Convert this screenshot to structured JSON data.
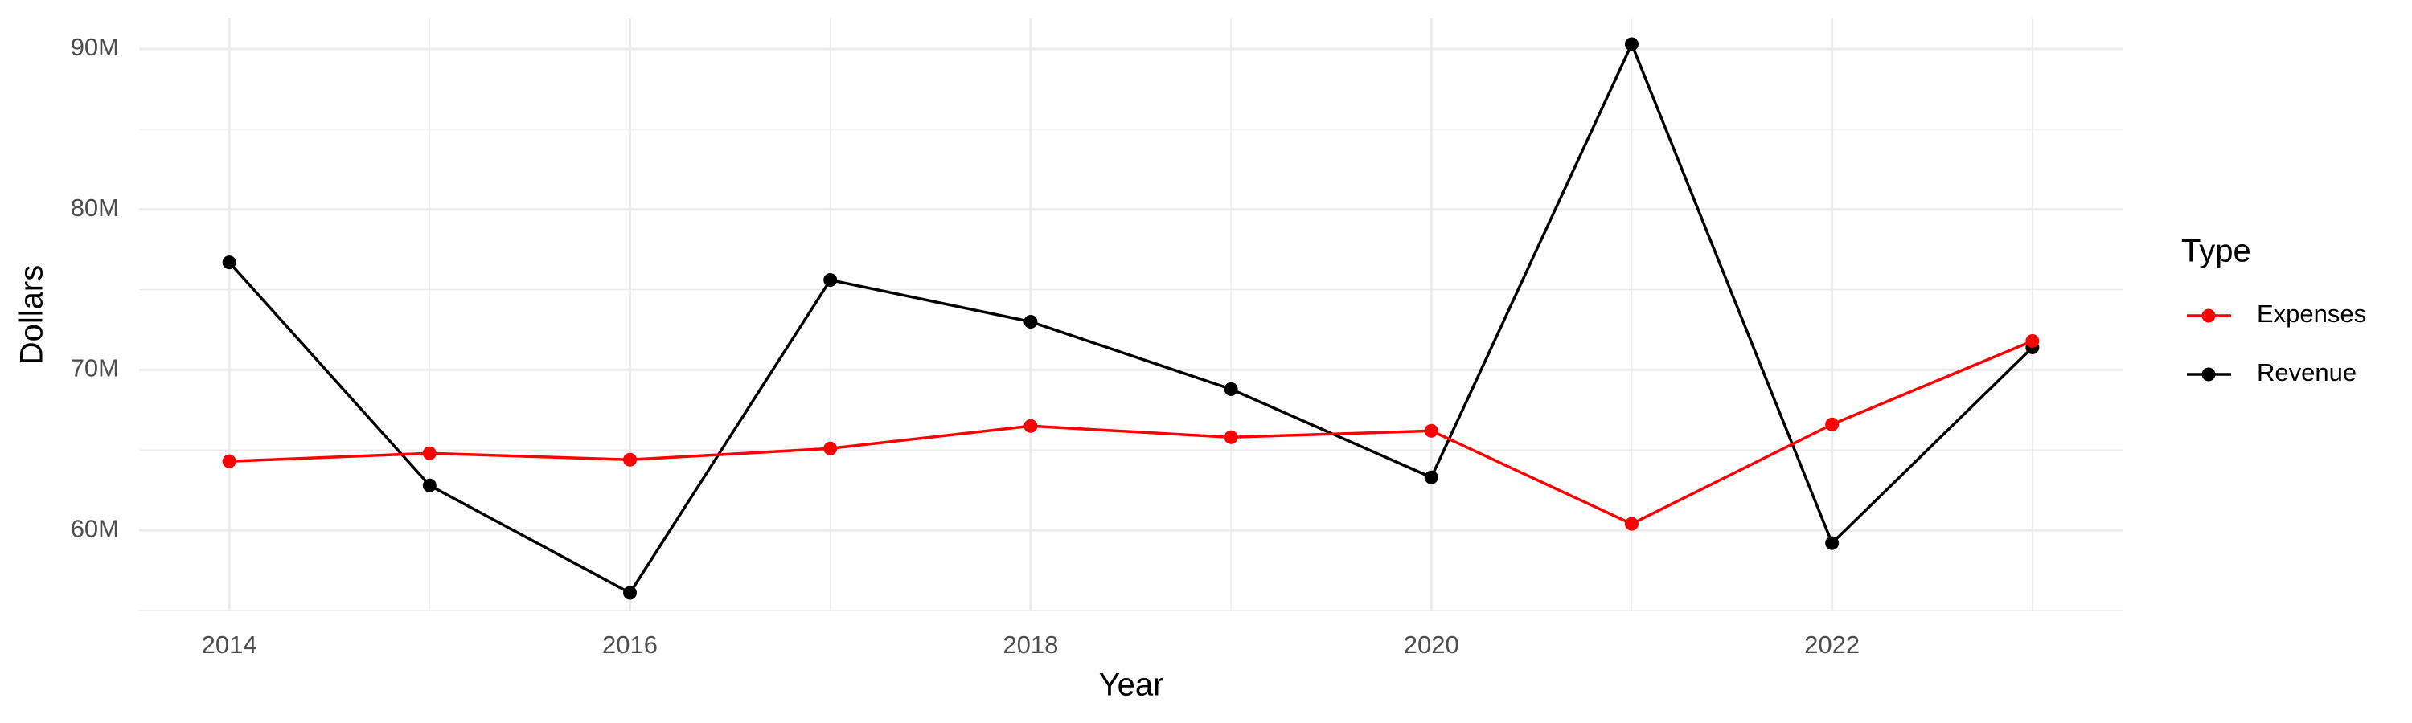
{
  "chart_data": {
    "type": "line",
    "x_label": "Year",
    "y_label": "Dollars",
    "legend_title": "Type",
    "legend_position": "right",
    "x": [
      2014,
      2015,
      2016,
      2017,
      2018,
      2019,
      2020,
      2021,
      2022,
      2023
    ],
    "series": [
      {
        "name": "Expenses",
        "color": "#ff0000",
        "values": [
          64300000,
          64800000,
          64400000,
          65100000,
          66500000,
          65800000,
          66200000,
          60400000,
          66600000,
          71800000
        ]
      },
      {
        "name": "Revenue",
        "color": "#000000",
        "values": [
          76700000,
          62800000,
          56100000,
          75600000,
          73000000,
          68800000,
          63300000,
          90300000,
          59200000,
          71400000
        ]
      }
    ],
    "xlim": [
      2013.55,
      2023.45
    ],
    "xticks": [
      2014,
      2016,
      2018,
      2020,
      2022
    ],
    "ylim": [
      55000000,
      91900000
    ],
    "yticks": [
      {
        "value": 60000000,
        "label": "60M"
      },
      {
        "value": 70000000,
        "label": "70M"
      },
      {
        "value": 80000000,
        "label": "80M"
      },
      {
        "value": 90000000,
        "label": "90M"
      }
    ],
    "grid": true
  }
}
